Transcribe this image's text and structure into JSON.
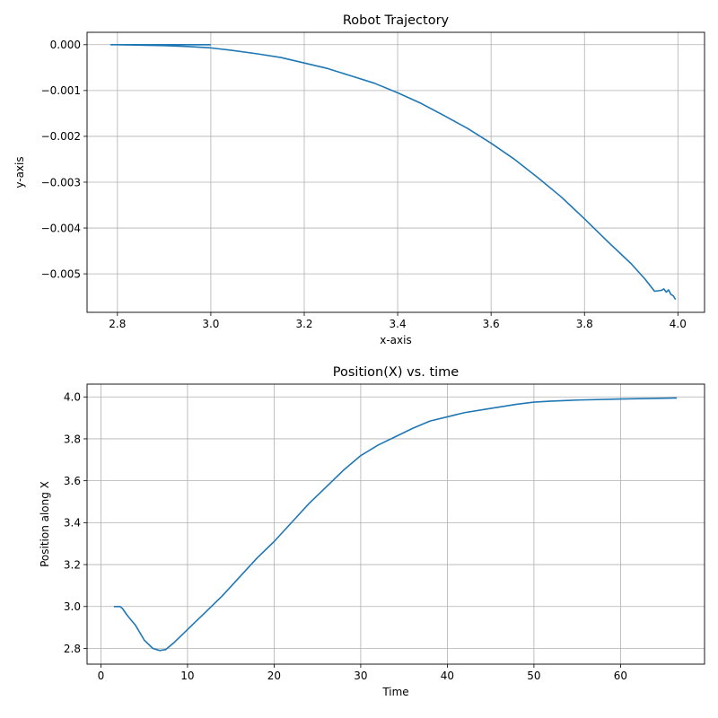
{
  "chart_data": [
    {
      "type": "line",
      "title": "Robot Trajectory",
      "xlabel": "x-axis",
      "ylabel": "y-axis",
      "xlim": [
        2.735,
        4.057
      ],
      "ylim": [
        -0.00584,
        0.00027
      ],
      "xticks": [
        2.8,
        3.0,
        3.2,
        3.4,
        3.6,
        3.8,
        4.0
      ],
      "xtick_labels": [
        "2.8",
        "3.0",
        "3.2",
        "3.4",
        "3.6",
        "3.8",
        "4.0"
      ],
      "yticks": [
        0.0,
        -0.001,
        -0.002,
        -0.003,
        -0.004,
        -0.005
      ],
      "ytick_labels": [
        "0.000",
        "−0.001",
        "−0.002",
        "−0.003",
        "−0.004",
        "−0.005"
      ],
      "grid": true,
      "color": "#1f77b4",
      "series": [
        {
          "x": [
            3.0,
            2.95,
            2.9,
            2.85,
            2.82,
            2.8,
            2.786,
            2.8,
            2.85,
            2.9,
            2.95,
            3.0,
            3.05,
            3.1,
            3.15,
            3.2,
            3.25,
            3.3,
            3.35,
            3.4,
            3.45,
            3.5,
            3.55,
            3.6,
            3.65,
            3.7,
            3.75,
            3.8,
            3.85,
            3.9,
            3.93,
            3.95,
            3.965,
            3.97,
            3.975,
            3.98,
            3.985,
            3.99,
            3.995
          ],
          "y": [
            0.0,
            0.0,
            0.0,
            0.0,
            0.0,
            0.0,
            0.0,
            0.0,
            -1e-05,
            -2e-05,
            -4e-05,
            -7e-05,
            -0.00013,
            -0.0002,
            -0.00028,
            -0.0004,
            -0.00052,
            -0.00068,
            -0.00084,
            -0.00105,
            -0.00128,
            -0.00155,
            -0.00183,
            -0.00215,
            -0.0025,
            -0.0029,
            -0.00332,
            -0.0038,
            -0.0043,
            -0.00478,
            -0.00512,
            -0.00538,
            -0.00536,
            -0.00533,
            -0.0054,
            -0.00535,
            -0.00545,
            -0.00548,
            -0.00556
          ]
        }
      ]
    },
    {
      "type": "line",
      "title": "Position(X) vs. time",
      "xlabel": "Time",
      "ylabel": "Position along X",
      "xlim": [
        -1.6,
        69.7
      ],
      "ylim": [
        2.725,
        4.061
      ],
      "xticks": [
        0,
        10,
        20,
        30,
        40,
        50,
        60
      ],
      "xtick_labels": [
        "0",
        "10",
        "20",
        "30",
        "40",
        "50",
        "60"
      ],
      "yticks": [
        2.8,
        3.0,
        3.2,
        3.4,
        3.6,
        3.8,
        4.0
      ],
      "ytick_labels": [
        "2.8",
        "3.0",
        "3.2",
        "3.4",
        "3.6",
        "3.8",
        "4.0"
      ],
      "grid": true,
      "color": "#1f77b4",
      "series": [
        {
          "x": [
            1.5,
            2.2,
            2.5,
            3.0,
            3.5,
            4.0,
            5.0,
            6.0,
            6.8,
            7.5,
            8.5,
            10,
            12,
            14,
            16,
            18,
            20,
            22,
            24,
            26,
            28,
            30,
            32,
            34,
            36,
            38,
            40,
            42,
            45,
            48,
            50,
            52,
            55,
            60,
            66.5
          ],
          "y": [
            3.0,
            3.0,
            2.99,
            2.96,
            2.935,
            2.91,
            2.84,
            2.8,
            2.79,
            2.795,
            2.83,
            2.89,
            2.97,
            3.05,
            3.14,
            3.23,
            3.31,
            3.4,
            3.49,
            3.57,
            3.65,
            3.72,
            3.77,
            3.81,
            3.85,
            3.885,
            3.905,
            3.925,
            3.945,
            3.965,
            3.975,
            3.98,
            3.985,
            3.99,
            3.995
          ]
        }
      ]
    }
  ]
}
